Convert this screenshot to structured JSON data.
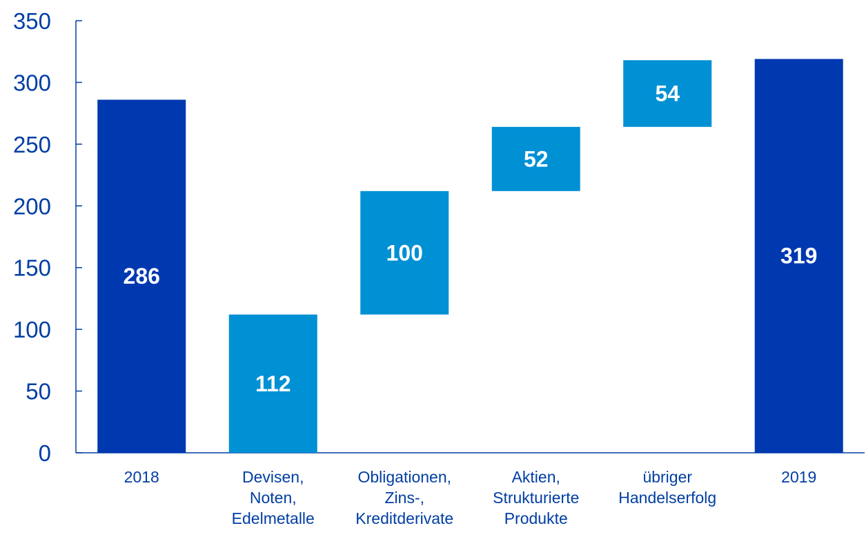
{
  "chart_data": {
    "type": "bar",
    "subtype": "waterfall",
    "title": "",
    "xlabel": "",
    "ylabel": "",
    "ylim": [
      0,
      350
    ],
    "yticks": [
      0,
      50,
      100,
      150,
      200,
      250,
      300,
      350
    ],
    "grid": false,
    "legend": "none",
    "colors": {
      "total": "#0038b0",
      "delta": "#0090d4",
      "axis": "#003ea3",
      "tick_label": "#003ea3",
      "category_label": "#003ea3",
      "bar_label": "#ffffff"
    },
    "categories": [
      [
        "2018"
      ],
      [
        "Devisen,",
        "Noten,",
        "Edelmetalle"
      ],
      [
        "Obligationen,",
        "Zins-,",
        "Kreditderivate"
      ],
      [
        "Aktien,",
        "Strukturierte",
        "Produkte"
      ],
      [
        "übriger",
        "Handelserfolg"
      ],
      [
        "2019"
      ]
    ],
    "bars": [
      {
        "kind": "total",
        "base": 0,
        "top": 286,
        "label": "286"
      },
      {
        "kind": "delta",
        "base": 0,
        "top": 112,
        "label": "112"
      },
      {
        "kind": "delta",
        "base": 112,
        "top": 212,
        "label": "100"
      },
      {
        "kind": "delta",
        "base": 212,
        "top": 264,
        "label": "52"
      },
      {
        "kind": "delta",
        "base": 264,
        "top": 318,
        "label": "54"
      },
      {
        "kind": "total",
        "base": 0,
        "top": 319,
        "label": "319"
      }
    ]
  }
}
